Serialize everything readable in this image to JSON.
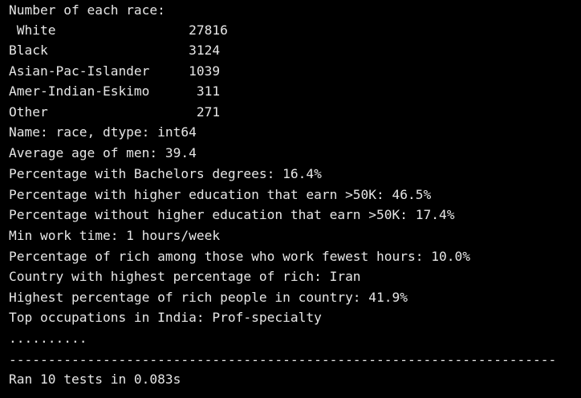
{
  "terminal": {
    "background_color": "#000000",
    "text_color": "#e6e6e6",
    "lines": [
      "Number of each race:",
      " White                 27816",
      "Black                  3124",
      "Asian-Pac-Islander     1039",
      "Amer-Indian-Eskimo      311",
      "Other                   271",
      "Name: race, dtype: int64",
      "Average age of men: 39.4",
      "Percentage with Bachelors degrees: 16.4%",
      "Percentage with higher education that earn >50K: 46.5%",
      "Percentage without higher education that earn >50K: 17.4%",
      "Min work time: 1 hours/week",
      "Percentage of rich among those who work fewest hours: 10.0%",
      "Country with highest percentage of rich: Iran",
      "Highest percentage of rich people in country: 41.9%",
      "Top occupations in India: Prof-specialty",
      "..........",
      "----------------------------------------------------------------------",
      "Ran 10 tests in 0.083s"
    ]
  }
}
